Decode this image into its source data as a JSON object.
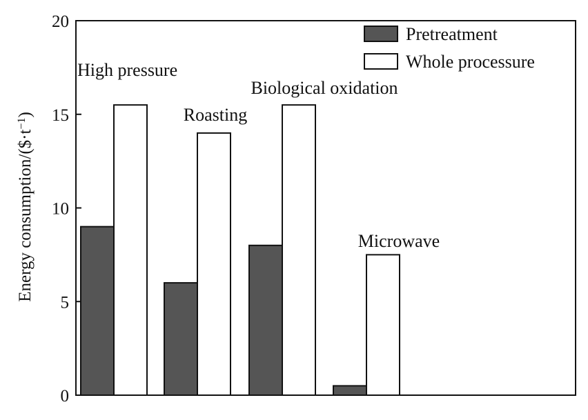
{
  "chart_data": {
    "type": "bar",
    "ylabel_main": "Energy consumption/(",
    "ylabel_unit": "$·t",
    "ylabel_exp": "−1",
    "ylabel_close": ")",
    "xlabel": "",
    "ylim": [
      0,
      20
    ],
    "yticks": [
      "0",
      "5",
      "10",
      "15",
      "20"
    ],
    "ytick_values": [
      0,
      5,
      10,
      15,
      20
    ],
    "categories": [
      "High pressure",
      "Roasting",
      "Biological oxidation",
      "Microwave"
    ],
    "series": [
      {
        "name": "Pretreatment",
        "color": "#555555",
        "values": [
          9,
          6,
          8,
          0.5
        ]
      },
      {
        "name": "Whole processure",
        "color": "#ffffff",
        "values": [
          15.5,
          14,
          15.5,
          7.5
        ]
      }
    ],
    "legend": "top-right",
    "grid": false
  }
}
